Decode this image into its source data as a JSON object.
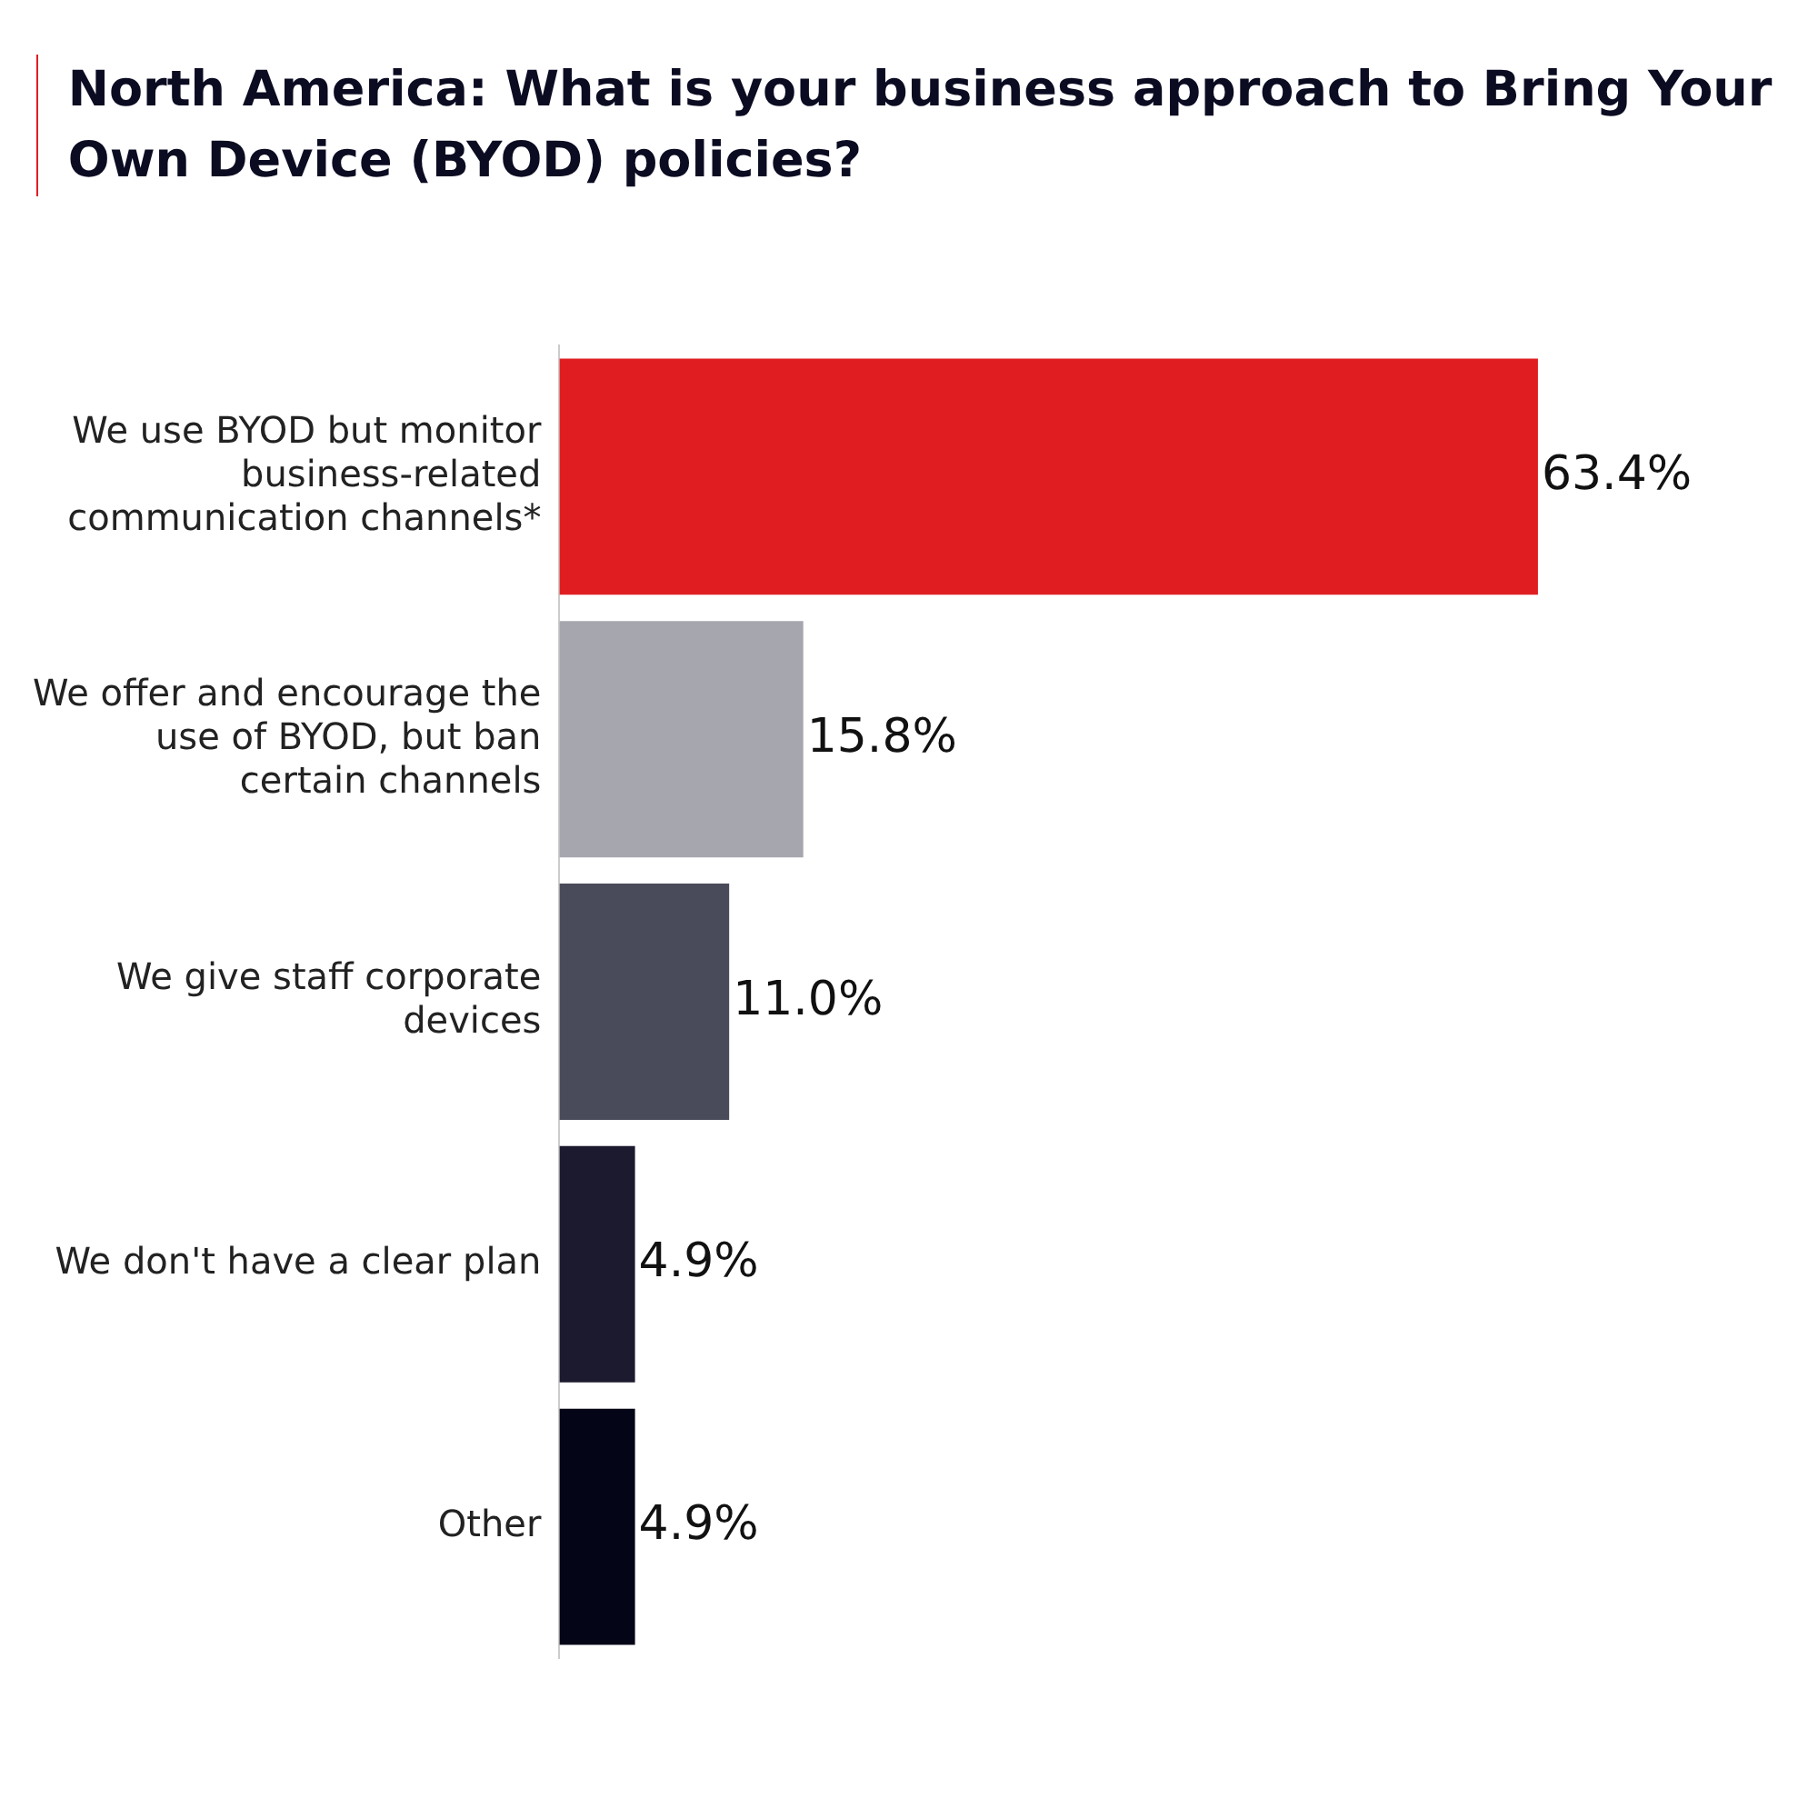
{
  "chart_data": {
    "type": "bar",
    "orientation": "horizontal",
    "title": "North America: What is your business approach to Bring Your Own Device (BYOD) policies?",
    "categories": [
      "We use BYOD but monitor business-related communication channels*",
      "We offer and encourage the use of BYOD, but ban certain channels",
      "We give staff corporate devices",
      "We don't have a clear plan",
      "Other"
    ],
    "values": [
      63.4,
      15.8,
      11.0,
      4.9,
      4.9
    ],
    "colors": [
      "#e01e22",
      "#a6a6ae",
      "#4a4b5a",
      "#1b1a2e",
      "#050518"
    ],
    "value_labels": [
      "63.4%",
      "15.8%",
      "11.0%",
      "4.9%",
      "4.9%"
    ],
    "tick_labels": "y",
    "grid": false,
    "legend": false
  }
}
